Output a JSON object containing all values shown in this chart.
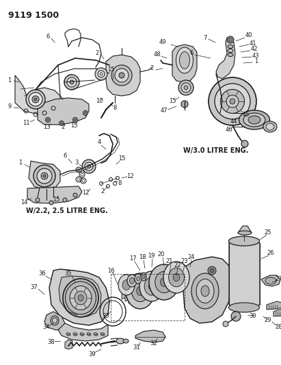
{
  "title": "9119 1500",
  "bg": "#ffffff",
  "lc": "#1a1a1a",
  "tc": "#1a1a1a",
  "sub22": "W/2.2, 2.5 LITRE ENG.",
  "sub30": "W/3.0 LITRE ENG.",
  "fig_w": 4.11,
  "fig_h": 5.33,
  "dpi": 100
}
